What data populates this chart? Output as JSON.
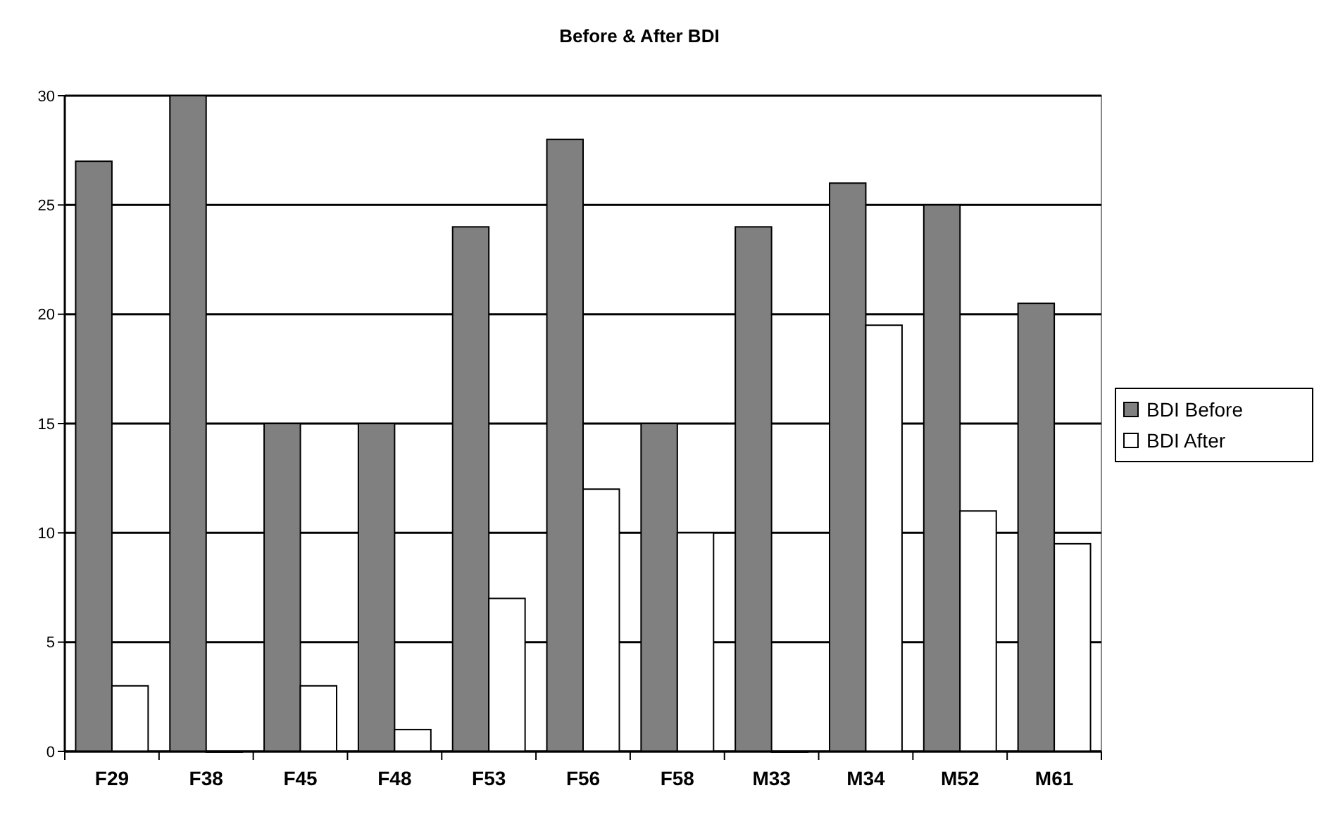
{
  "chart_data": {
    "type": "bar",
    "title": "Before & After BDI",
    "categories": [
      "F29",
      "F38",
      "F45",
      "F48",
      "F53",
      "F56",
      "F58",
      "M33",
      "M34",
      "M52",
      "M61"
    ],
    "series": [
      {
        "name": "BDI Before",
        "color": "#808080",
        "values": [
          27,
          30,
          15,
          15,
          24,
          28,
          15,
          24,
          26,
          25,
          20.5
        ]
      },
      {
        "name": "BDI After",
        "color": "#ffffff",
        "values": [
          3,
          0,
          3,
          1,
          7,
          12,
          10,
          0,
          19.5,
          11,
          9.5
        ]
      }
    ],
    "ylim": [
      0,
      30
    ],
    "yticks": [
      0,
      5,
      10,
      15,
      20,
      25,
      30
    ],
    "grid": "y",
    "legend": "right"
  }
}
